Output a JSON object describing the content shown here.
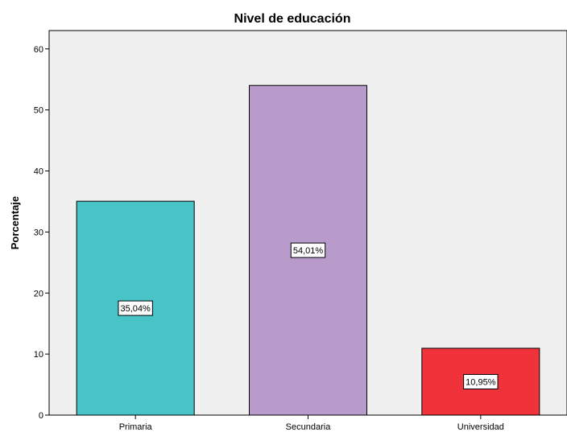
{
  "chart_data": {
    "type": "bar",
    "title": "Nivel de educación",
    "xlabel": "",
    "ylabel": "Porcentaje",
    "categories": [
      "Primaria",
      "Secundaria",
      "Universidad"
    ],
    "values": [
      35.04,
      54.01,
      10.95
    ],
    "data_labels": [
      "35,04%",
      "54,01%",
      "10,95%"
    ],
    "colors": [
      "#48C4C8",
      "#B89BCB",
      "#F0323A"
    ],
    "plot_background": "#F0F0F0",
    "ylim": [
      0,
      63
    ],
    "yticks": [
      0,
      10,
      20,
      30,
      40,
      50,
      60
    ],
    "grid": false,
    "legend": "none"
  }
}
